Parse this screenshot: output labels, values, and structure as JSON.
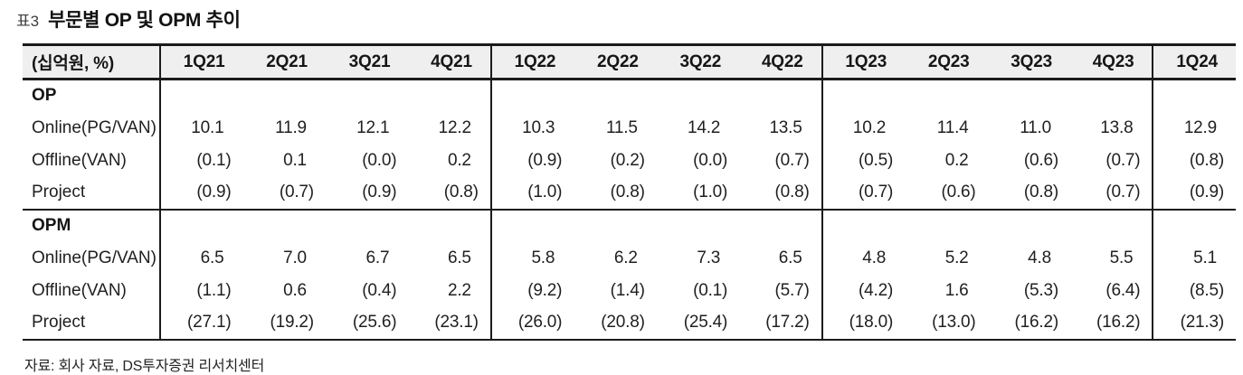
{
  "title": {
    "tag": "표3",
    "text": "부문별 OP 및 OPM 추이"
  },
  "table": {
    "unit_header": "(십억원, %)",
    "columns": [
      "1Q21",
      "2Q21",
      "3Q21",
      "4Q21",
      "1Q22",
      "2Q22",
      "3Q22",
      "4Q22",
      "1Q23",
      "2Q23",
      "3Q23",
      "4Q23",
      "1Q24"
    ],
    "sections": [
      {
        "name": "OP",
        "rows": [
          {
            "label": "Online(PG/VAN)",
            "values": [
              "10.1",
              "11.9",
              "12.1",
              "12.2",
              "10.3",
              "11.5",
              "14.2",
              "13.5",
              "10.2",
              "11.4",
              "11.0",
              "13.8",
              "12.9"
            ]
          },
          {
            "label": "Offline(VAN)",
            "values": [
              "(0.1)",
              "0.1",
              "(0.0)",
              "0.2",
              "(0.9)",
              "(0.2)",
              "(0.0)",
              "(0.7)",
              "(0.5)",
              "0.2",
              "(0.6)",
              "(0.7)",
              "(0.8)"
            ]
          },
          {
            "label": "Project",
            "values": [
              "(0.9)",
              "(0.7)",
              "(0.9)",
              "(0.8)",
              "(1.0)",
              "(0.8)",
              "(1.0)",
              "(0.8)",
              "(0.7)",
              "(0.6)",
              "(0.8)",
              "(0.7)",
              "(0.9)"
            ]
          }
        ]
      },
      {
        "name": "OPM",
        "rows": [
          {
            "label": "Online(PG/VAN)",
            "values": [
              "6.5",
              "7.0",
              "6.7",
              "6.5",
              "5.8",
              "6.2",
              "7.3",
              "6.5",
              "4.8",
              "5.2",
              "4.8",
              "5.5",
              "5.1"
            ]
          },
          {
            "label": "Offline(VAN)",
            "values": [
              "(1.1)",
              "0.6",
              "(0.4)",
              "2.2",
              "(9.2)",
              "(1.4)",
              "(0.1)",
              "(5.7)",
              "(4.2)",
              "1.6",
              "(5.3)",
              "(6.4)",
              "(8.5)"
            ]
          },
          {
            "label": "Project",
            "values": [
              "(27.1)",
              "(19.2)",
              "(25.6)",
              "(23.1)",
              "(26.0)",
              "(20.8)",
              "(25.4)",
              "(17.2)",
              "(18.0)",
              "(13.0)",
              "(16.2)",
              "(16.2)",
              "(21.3)"
            ]
          }
        ]
      }
    ]
  },
  "footer": "자료: 회사 자료, DS투자증권 리서치센터",
  "colors": {
    "header_bg": "#efefef",
    "border": "#1b1b1b",
    "text": "#1f1f1f",
    "title_tag": "#3d3d3d"
  }
}
